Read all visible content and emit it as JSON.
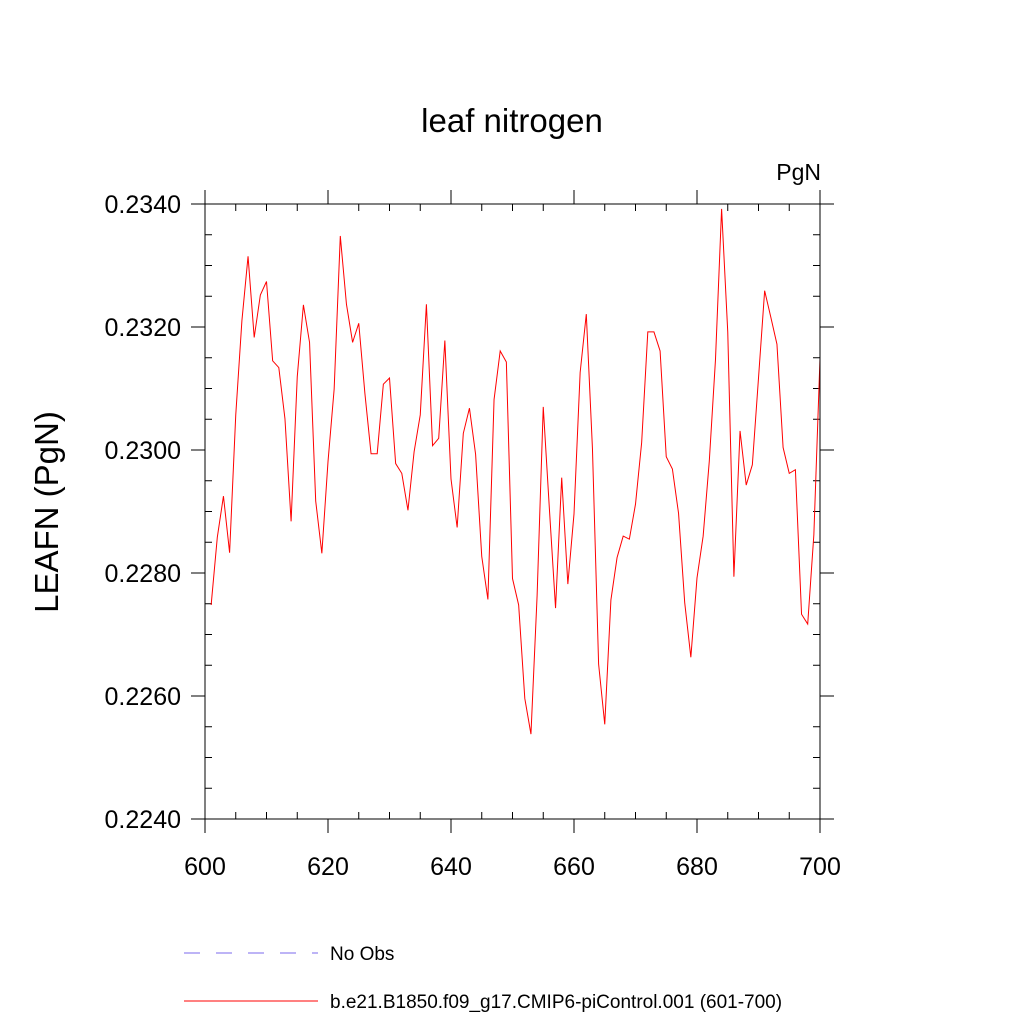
{
  "chart_data": {
    "type": "line",
    "title": "leaf nitrogen",
    "units_label": "PgN",
    "ylabel": "LEAFN  (PgN)",
    "xlabel": "",
    "xlim": [
      600,
      700
    ],
    "ylim": [
      0.224,
      0.234
    ],
    "x_ticks": [
      600,
      620,
      640,
      660,
      680,
      700
    ],
    "x_tick_labels": [
      "600",
      "620",
      "640",
      "660",
      "680",
      "700"
    ],
    "y_ticks": [
      0.224,
      0.226,
      0.228,
      0.23,
      0.232,
      0.234
    ],
    "y_tick_labels": [
      "0.2240",
      "0.2260",
      "0.2280",
      "0.2300",
      "0.2320",
      "0.2340"
    ],
    "series": [
      {
        "name": "b.e21.B1850.f09_g17.CMIP6-piControl.001 (601-700)",
        "color": "#ff0000",
        "x_start": 601,
        "x_step": 1,
        "values": [
          0.22748,
          0.22858,
          0.22925,
          0.22833,
          0.23057,
          0.2321,
          0.23315,
          0.23183,
          0.23252,
          0.23274,
          0.23145,
          0.23134,
          0.23051,
          0.22884,
          0.23119,
          0.23236,
          0.23175,
          0.22917,
          0.22832,
          0.22981,
          0.23099,
          0.23348,
          0.23237,
          0.23175,
          0.23206,
          0.23092,
          0.22994,
          0.22994,
          0.23107,
          0.23117,
          0.22978,
          0.22962,
          0.22902,
          0.22997,
          0.23057,
          0.23237,
          0.23007,
          0.23019,
          0.23178,
          0.22953,
          0.22874,
          0.23027,
          0.23068,
          0.22993,
          0.22827,
          0.22757,
          0.23082,
          0.23161,
          0.23143,
          0.22791,
          0.22748,
          0.22596,
          0.22538,
          0.22763,
          0.2307,
          0.22904,
          0.22743,
          0.22955,
          0.22782,
          0.22896,
          0.23126,
          0.23221,
          0.23002,
          0.22652,
          0.22554,
          0.22756,
          0.22825,
          0.2286,
          0.22855,
          0.22912,
          0.23012,
          0.23192,
          0.23192,
          0.23161,
          0.22989,
          0.22969,
          0.22897,
          0.22752,
          0.22663,
          0.22792,
          0.2286,
          0.22982,
          0.23146,
          0.23392,
          0.23192,
          0.22794,
          0.23031,
          0.22943,
          0.22976,
          0.23117,
          0.23259,
          0.23216,
          0.23172,
          0.23004,
          0.22962,
          0.22968,
          0.22733,
          0.22717,
          0.22862,
          0.23149
        ]
      },
      {
        "name": "No Obs",
        "color": "#7b68ee",
        "dashed": true,
        "values": []
      }
    ],
    "legend": "bottom"
  }
}
